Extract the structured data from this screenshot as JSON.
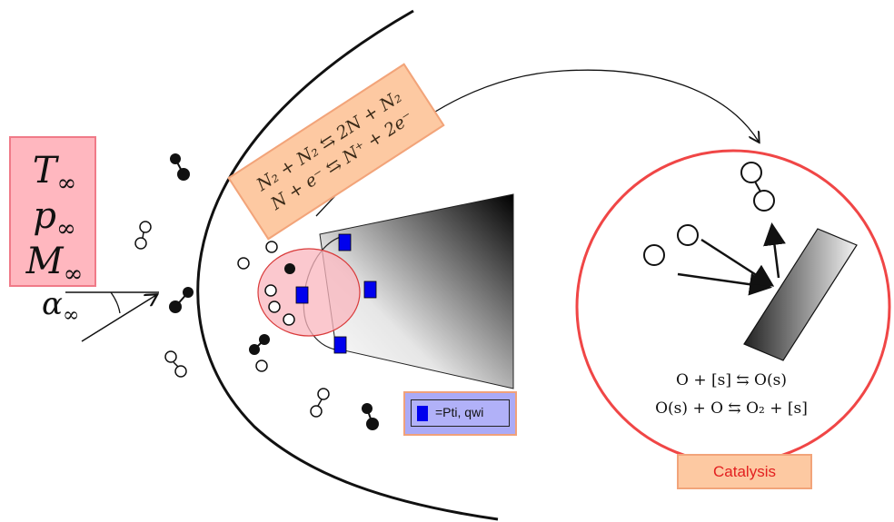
{
  "freestream": {
    "temperature": "T",
    "pressure": "p",
    "mach": "M",
    "subscript": "∞",
    "angle_symbol": "α"
  },
  "reactions": {
    "line1": "N₂ + N₂ ⇆ 2N + N₂",
    "line2": "N + e⁻ ⇆ N⁺ + 2e⁻"
  },
  "legend": {
    "label": "=Pti, qwi",
    "swatch_color": "#0000ee"
  },
  "catalysis": {
    "label": "Catalysis",
    "eq1": "O + [s] ⇆ O(s)",
    "eq2": "O(s) + O ⇆ O₂ + [s]"
  },
  "colors": {
    "freestream_box": "#ffb7bf",
    "reaction_box": "#fdc9a2",
    "legend_box": "#aaaaf7",
    "catalysis_circle": "#f04646",
    "sensor": "#0000ee"
  }
}
